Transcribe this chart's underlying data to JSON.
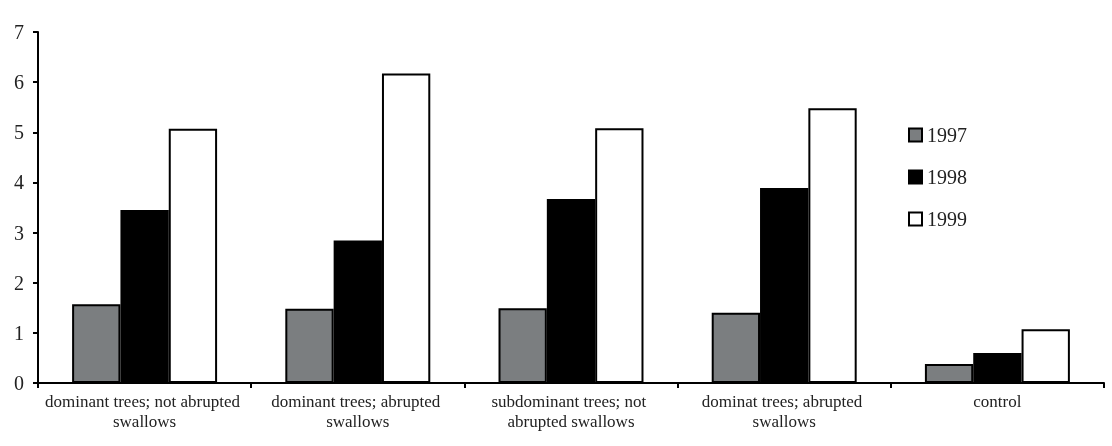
{
  "chart_data": {
    "type": "bar",
    "categories": [
      "dominant trees; not abrupted swallows",
      "dominant trees; abrupted swallows",
      "subdominant trees; not abrupted swallows",
      "dominat trees; abrupted swallows",
      "control"
    ],
    "series": [
      {
        "name": "1997",
        "color": "#7b7e80",
        "values": [
          1.57,
          1.48,
          1.49,
          1.4,
          0.38
        ]
      },
      {
        "name": "1998",
        "color": "#000000",
        "values": [
          3.45,
          2.84,
          3.67,
          3.89,
          0.6
        ]
      },
      {
        "name": "1999",
        "color": "#ffffff",
        "values": [
          5.07,
          6.17,
          5.08,
          5.48,
          1.07
        ]
      }
    ],
    "ylim": [
      0,
      7
    ],
    "yticks": [
      0,
      1,
      2,
      3,
      4,
      5,
      6,
      7
    ],
    "grid": false,
    "legend": "right"
  }
}
